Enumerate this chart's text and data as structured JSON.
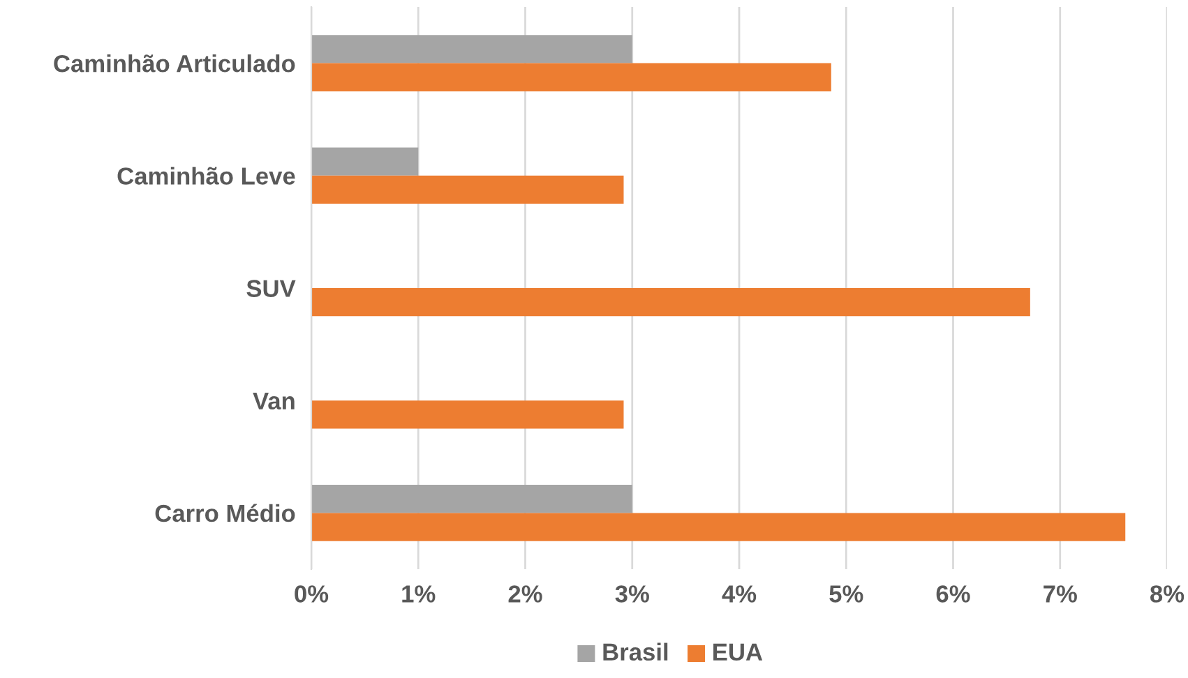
{
  "chart_data": {
    "type": "bar",
    "orientation": "horizontal",
    "categories": [
      "Caminhão Articulado",
      "Caminhão Leve",
      "SUV",
      "Van",
      "Carro Médio"
    ],
    "series": [
      {
        "name": "Brasil",
        "color": "#a5a5a5",
        "values": [
          3,
          1,
          null,
          null,
          3
        ]
      },
      {
        "name": "EUA",
        "color": "#ed7d31",
        "values": [
          4.86,
          2.92,
          6.72,
          2.92,
          7.61
        ]
      }
    ],
    "xlim": [
      0,
      8
    ],
    "xticks": [
      {
        "value": 0,
        "label": "0%"
      },
      {
        "value": 1,
        "label": "1%"
      },
      {
        "value": 2,
        "label": "2%"
      },
      {
        "value": 3,
        "label": "3%"
      },
      {
        "value": 4,
        "label": "4%"
      },
      {
        "value": 5,
        "label": "5%"
      },
      {
        "value": 6,
        "label": "6%"
      },
      {
        "value": 7,
        "label": "7%"
      },
      {
        "value": 8,
        "label": "8%"
      }
    ],
    "grid": "x",
    "legend": "bottom"
  }
}
